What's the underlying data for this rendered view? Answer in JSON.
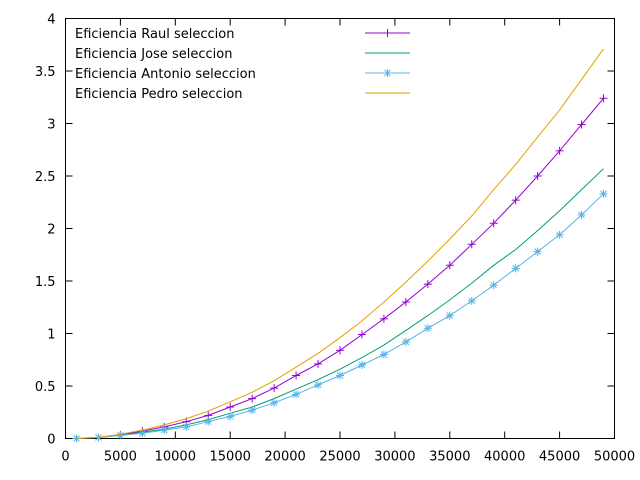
{
  "chart_data": {
    "type": "line",
    "title": "",
    "xlabel": "",
    "ylabel": "",
    "xlim": [
      0,
      50000
    ],
    "ylim": [
      0,
      4
    ],
    "xticks": [
      0,
      5000,
      10000,
      15000,
      20000,
      25000,
      30000,
      35000,
      40000,
      45000,
      50000
    ],
    "xtick_labels": [
      "0",
      "5000",
      "10000",
      "15000",
      "20000",
      "25000",
      "30000",
      "35000",
      "40000",
      "45000",
      "50000"
    ],
    "yticks": [
      0,
      0.5,
      1,
      1.5,
      2,
      2.5,
      3,
      3.5,
      4
    ],
    "ytick_labels": [
      "0",
      "0.5",
      "1",
      "1.5",
      "2",
      "2.5",
      "3",
      "3.5",
      "4"
    ],
    "grid": false,
    "legend_position": "top-left",
    "x": [
      1000,
      3000,
      5000,
      7000,
      9000,
      11000,
      13000,
      15000,
      17000,
      19000,
      21000,
      23000,
      25000,
      27000,
      29000,
      31000,
      33000,
      35000,
      37000,
      39000,
      41000,
      43000,
      45000,
      47000,
      49000
    ],
    "series": [
      {
        "name": "Eficiencia Raul seleccion",
        "color": "#9400d3",
        "marker": "plus",
        "values": [
          0.0,
          0.01,
          0.035,
          0.07,
          0.11,
          0.16,
          0.22,
          0.3,
          0.38,
          0.48,
          0.6,
          0.71,
          0.84,
          0.99,
          1.14,
          1.3,
          1.47,
          1.65,
          1.85,
          2.05,
          2.27,
          2.5,
          2.74,
          2.99,
          3.24
        ]
      },
      {
        "name": "Eficiencia Jose seleccion",
        "color": "#009e73",
        "marker": "none",
        "values": [
          0.0,
          0.01,
          0.03,
          0.06,
          0.09,
          0.13,
          0.18,
          0.24,
          0.3,
          0.38,
          0.47,
          0.56,
          0.66,
          0.77,
          0.89,
          1.03,
          1.17,
          1.32,
          1.48,
          1.65,
          1.8,
          1.98,
          2.17,
          2.37,
          2.57
        ]
      },
      {
        "name": "Eficiencia Antonio seleccion",
        "color": "#56b4e9",
        "marker": "star",
        "values": [
          0.0,
          0.01,
          0.03,
          0.05,
          0.08,
          0.11,
          0.16,
          0.21,
          0.27,
          0.34,
          0.42,
          0.51,
          0.6,
          0.7,
          0.8,
          0.92,
          1.05,
          1.17,
          1.31,
          1.46,
          1.62,
          1.78,
          1.94,
          2.13,
          2.33
        ]
      },
      {
        "name": "Eficiencia Pedro seleccion",
        "color": "#e69f00",
        "marker": "none",
        "values": [
          0.0,
          0.01,
          0.04,
          0.08,
          0.13,
          0.19,
          0.26,
          0.35,
          0.44,
          0.55,
          0.68,
          0.81,
          0.96,
          1.12,
          1.3,
          1.49,
          1.69,
          1.9,
          2.12,
          2.37,
          2.61,
          2.87,
          3.13,
          3.42,
          3.71
        ]
      }
    ]
  }
}
